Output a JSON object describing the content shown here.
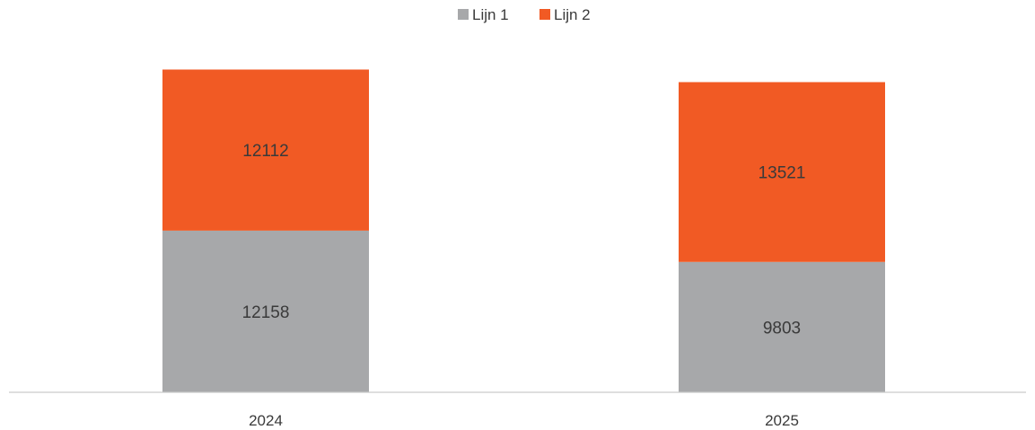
{
  "chart_data": {
    "type": "bar",
    "stacked": true,
    "categories": [
      "2024",
      "2025"
    ],
    "series": [
      {
        "name": "Lijn 1",
        "values": [
          12158,
          9803
        ],
        "color": "#a7a8aa"
      },
      {
        "name": "Lijn 2",
        "values": [
          12112,
          13521
        ],
        "color": "#f15a24"
      }
    ],
    "legend_position": "top-center",
    "grid": false,
    "data_labels": true,
    "ylim": [
      0,
      29500
    ]
  }
}
